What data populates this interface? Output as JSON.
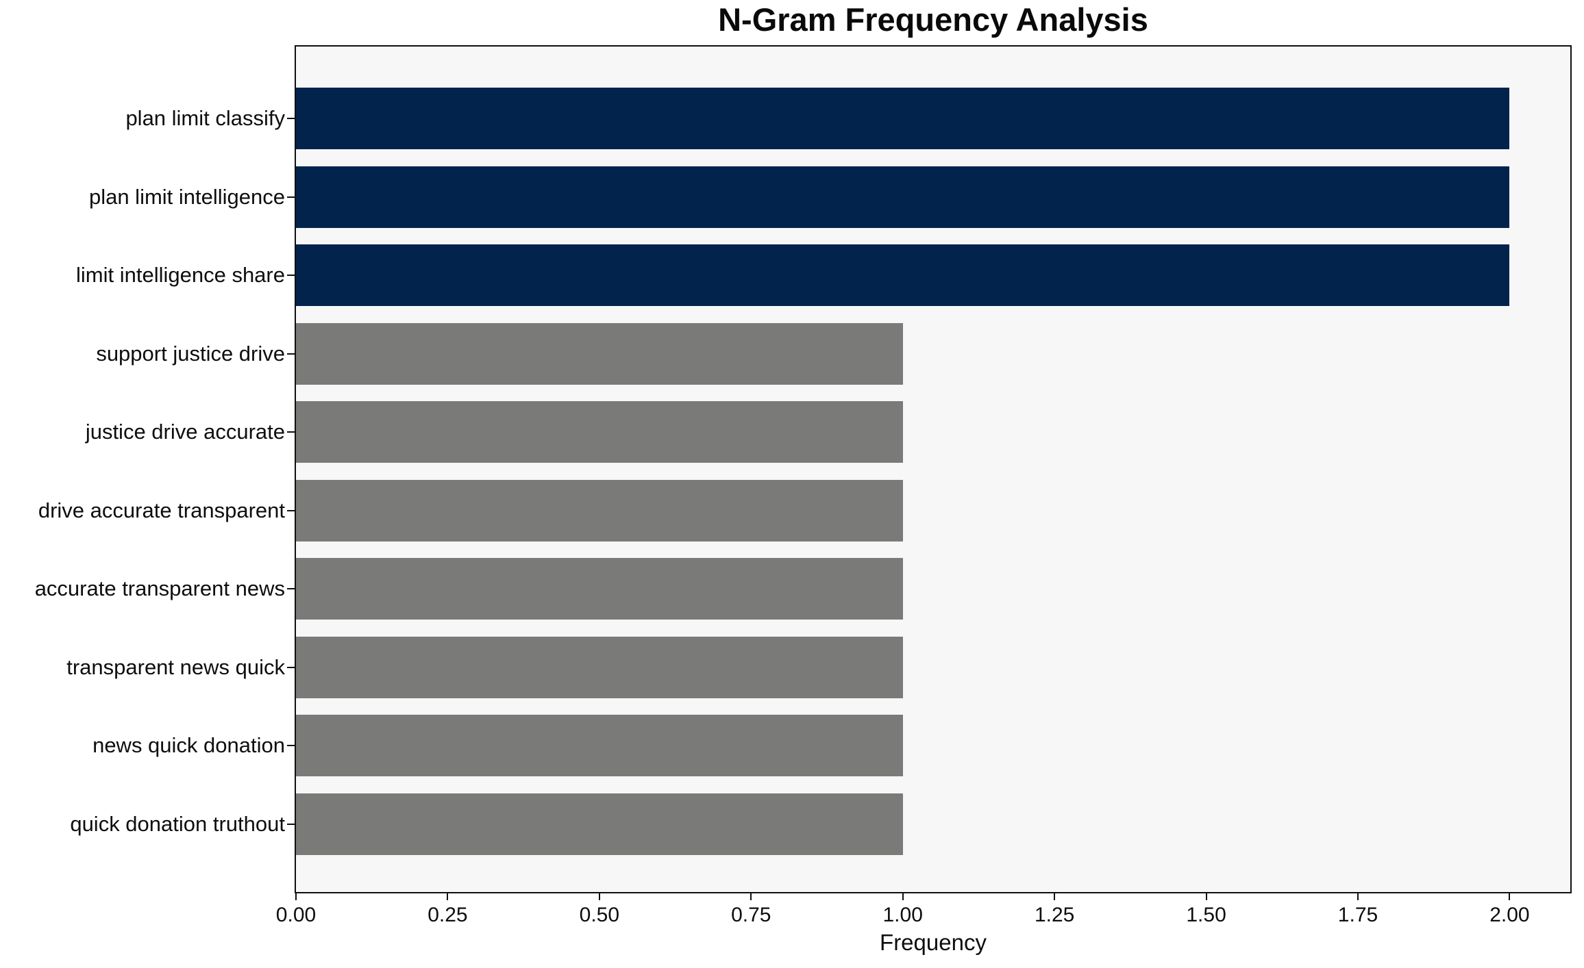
{
  "chart_data": {
    "type": "bar",
    "orientation": "horizontal",
    "title": "N-Gram Frequency Analysis",
    "xlabel": "Frequency",
    "ylabel": "",
    "categories": [
      "plan limit classify",
      "plan limit intelligence",
      "limit intelligence share",
      "support justice drive",
      "justice drive accurate",
      "drive accurate transparent",
      "accurate transparent news",
      "transparent news quick",
      "news quick donation",
      "quick donation truthout"
    ],
    "values": [
      2,
      2,
      2,
      1,
      1,
      1,
      1,
      1,
      1,
      1
    ],
    "bar_colors": [
      "highlight",
      "highlight",
      "highlight",
      "base",
      "base",
      "base",
      "base",
      "base",
      "base",
      "base"
    ],
    "colors": {
      "highlight": "#02234c",
      "base": "#7a7a78",
      "plot_background": "#f7f7f7",
      "spine": "#101010",
      "text": "#0e0e0e"
    },
    "xlim": [
      0,
      2.1
    ],
    "xtick_values": [
      0,
      0.25,
      0.5,
      0.75,
      1.0,
      1.25,
      1.5,
      1.75,
      2.0
    ],
    "xtick_labels": [
      "0.00",
      "0.25",
      "0.50",
      "0.75",
      "1.00",
      "1.25",
      "1.50",
      "1.75",
      "2.00"
    ],
    "grid": false,
    "legend": false
  }
}
